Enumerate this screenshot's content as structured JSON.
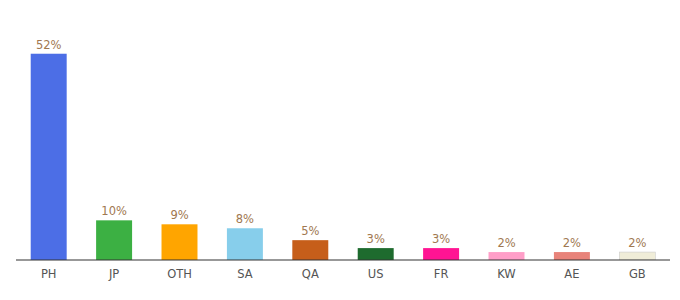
{
  "chart_data": {
    "type": "bar",
    "categories": [
      "PH",
      "JP",
      "OTH",
      "SA",
      "QA",
      "US",
      "FR",
      "KW",
      "AE",
      "GB"
    ],
    "values": [
      52,
      10,
      9,
      8,
      5,
      3,
      3,
      2,
      2,
      2
    ],
    "value_labels": [
      "52%",
      "10%",
      "9%",
      "8%",
      "5%",
      "3%",
      "3%",
      "2%",
      "2%",
      "2%"
    ],
    "colors": [
      "#4C6EE6",
      "#3CB043",
      "#FFA500",
      "#87CEEB",
      "#C65E1A",
      "#1E6B2E",
      "#FF1493",
      "#FF9EC8",
      "#E8837A",
      "#F0EDD8"
    ],
    "ylim": [
      0,
      60
    ],
    "grid": false,
    "data_labels": true,
    "tick_labels": "x"
  }
}
